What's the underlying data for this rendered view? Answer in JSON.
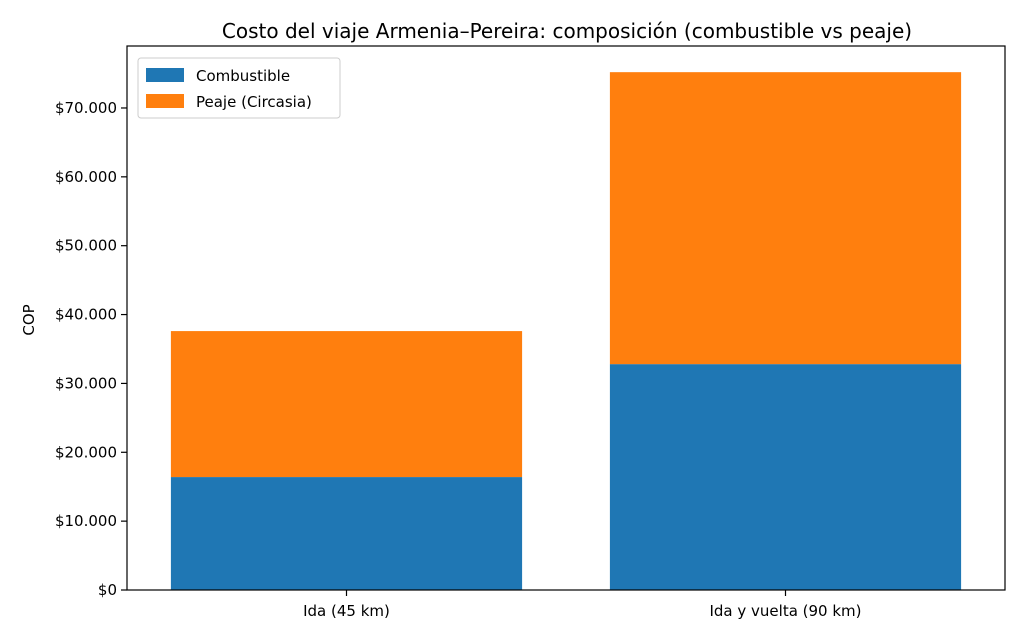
{
  "chart_data": {
    "type": "bar",
    "stacked": true,
    "title": "Costo del viaje Armenia–Pereira: composición (combustible vs peaje)",
    "xlabel": "",
    "ylabel": "COP",
    "categories": [
      "Ida (45 km)",
      "Ida y vuelta (90 km)"
    ],
    "series": [
      {
        "name": "Combustible",
        "color": "#1f77b4",
        "values": [
          16400,
          32800
        ]
      },
      {
        "name": "Peaje (Circasia)",
        "color": "#ff7f0e",
        "values": [
          21200,
          42400
        ]
      }
    ],
    "ylim": [
      0,
      79000
    ],
    "yticks": [
      0,
      10000,
      20000,
      30000,
      40000,
      50000,
      60000,
      70000
    ],
    "ytick_labels": [
      "$0",
      "$10.000",
      "$20.000",
      "$30.000",
      "$40.000",
      "$50.000",
      "$60.000",
      "$70.000"
    ],
    "grid": false,
    "legend_position": "top-left"
  }
}
